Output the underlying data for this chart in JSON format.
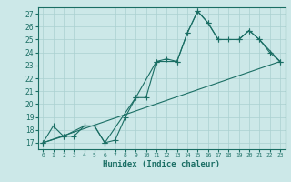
{
  "xlabel": "Humidex (Indice chaleur)",
  "ylabel": "",
  "xlim": [
    -0.5,
    23.5
  ],
  "ylim": [
    16.5,
    27.5
  ],
  "yticks": [
    17,
    18,
    19,
    20,
    21,
    22,
    23,
    24,
    25,
    26,
    27
  ],
  "xticks": [
    0,
    1,
    2,
    3,
    4,
    5,
    6,
    7,
    8,
    9,
    10,
    11,
    12,
    13,
    14,
    15,
    16,
    17,
    18,
    19,
    20,
    21,
    22,
    23
  ],
  "bg_color": "#cce8e8",
  "grid_color": "#aad0d0",
  "line_color": "#1a6e64",
  "line1_x": [
    0,
    1,
    2,
    3,
    4,
    5,
    6,
    7,
    8,
    9,
    10,
    11,
    12,
    13,
    14,
    15,
    16,
    17,
    18,
    19,
    20,
    21,
    22,
    23
  ],
  "line1_y": [
    17.0,
    18.3,
    17.5,
    17.5,
    18.3,
    18.3,
    17.0,
    17.2,
    19.0,
    20.5,
    20.5,
    23.3,
    23.5,
    23.3,
    25.5,
    27.2,
    26.3,
    25.0,
    25.0,
    25.0,
    25.7,
    25.0,
    24.0,
    23.3
  ],
  "line2_x": [
    0,
    23
  ],
  "line2_y": [
    17.0,
    23.3
  ],
  "line3_x": [
    0,
    2,
    4,
    5,
    6,
    9,
    11,
    13,
    14,
    15,
    16,
    17,
    19,
    20,
    21,
    23
  ],
  "line3_y": [
    17.0,
    17.5,
    18.3,
    18.3,
    17.0,
    20.5,
    23.3,
    23.3,
    25.5,
    27.2,
    26.3,
    25.0,
    25.0,
    25.7,
    25.0,
    23.3
  ],
  "marker": "+",
  "markersize": 4,
  "linewidth": 0.8
}
